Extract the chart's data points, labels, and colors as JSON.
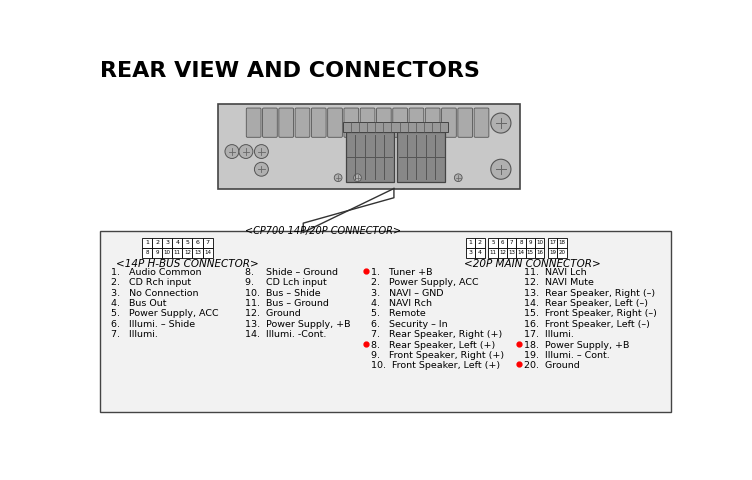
{
  "title": "REAR VIEW AND CONNECTORS",
  "title_fontsize": 16,
  "title_fontweight": "bold",
  "bg_color": "#ffffff",
  "connector_label": "<CP700 14P/20P CONNECTOR>",
  "hbus_label": "<14P H-BUS CONNECTOR>",
  "main_label": "<20P MAIN CONNECTOR>",
  "hbus_pins_row1": [
    "1",
    "2",
    "3",
    "4",
    "5",
    "6",
    "7"
  ],
  "hbus_pins_row2": [
    "8",
    "9",
    "10",
    "11",
    "12",
    "13",
    "14"
  ],
  "main_pins_top_left": [
    "1",
    "2"
  ],
  "main_pins_top_mid": [
    "5",
    "6",
    "7",
    "8",
    "9",
    "10"
  ],
  "main_pins_top_right": [
    "17",
    "18"
  ],
  "main_pins_bot_left": [
    "3",
    "4"
  ],
  "main_pins_bot_mid": [
    "11",
    "12",
    "13",
    "14",
    "15",
    "16"
  ],
  "main_pins_bot_right": [
    "19",
    "20"
  ],
  "hbus_items_col1": [
    "1.   Audio Common",
    "2.   CD Rch input",
    "3.   No Connection",
    "4.   Bus Out",
    "5.   Power Supply, ACC",
    "6.   Illumi. – Shide",
    "7.   Illumi."
  ],
  "hbus_items_col2": [
    "8.    Shide – Ground",
    "9.    CD Lch input",
    "10.  Bus – Shide",
    "11.  Bus – Ground",
    "12.  Ground",
    "13.  Power Supply, +B",
    "14.  Illumi. -Cont."
  ],
  "main_items_col1": [
    "1.   Tuner +B",
    "2.   Power Supply, ACC",
    "3.   NAVI – GND",
    "4.   NAVI Rch",
    "5.   Remote",
    "6.   Security – In",
    "7.   Rear Speaker, Right (+)",
    "8.   Rear Speaker, Left (+)",
    "9.   Front Speaker, Right (+)",
    "10.  Front Speaker, Left (+)"
  ],
  "main_items_col2": [
    "11.  NAVI Lch",
    "12.  NAVI Mute",
    "13.  Rear Speaker, Right (–)",
    "14.  Rear Speaker, Left (–)",
    "15.  Front Speaker, Right (–)",
    "16.  Front Speaker, Left (–)",
    "17.  Illumi.",
    "18.  Power Supply, +B",
    "19.  Illumi. – Cont.",
    "20.  Ground"
  ],
  "red_dot_col1": [
    0,
    7
  ],
  "red_dot_col2": [
    7,
    9
  ],
  "text_color": "#000000",
  "small_fontsize": 6.8,
  "label_fontsize": 7.5
}
